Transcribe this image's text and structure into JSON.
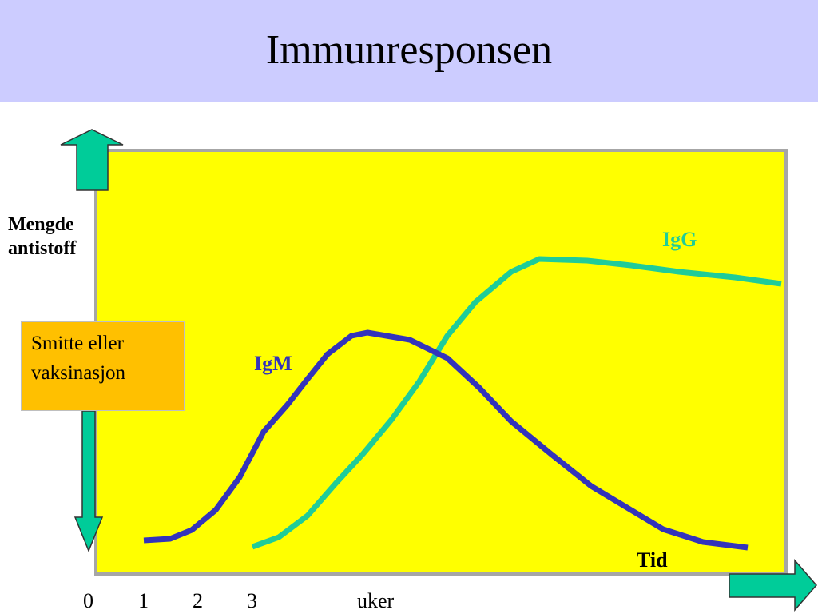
{
  "title": "Immunresponsen",
  "y_axis_label": [
    "Mengde",
    "antistoff"
  ],
  "event_box": [
    "Smitte eller",
    "vaksinasjon"
  ],
  "x_axis_label": "Tid",
  "x_ticks": [
    "0",
    "1",
    "2",
    "3",
    "uker"
  ],
  "curves": [
    {
      "name": "IgG",
      "color": "#1fcc99"
    },
    {
      "name": "IgM",
      "color": "#3333bb"
    }
  ],
  "colors": {
    "title_bar": "#ccccff",
    "plot_background": "#ffff00",
    "arrows": "#00cc99",
    "event_box": "#ffc000"
  }
}
